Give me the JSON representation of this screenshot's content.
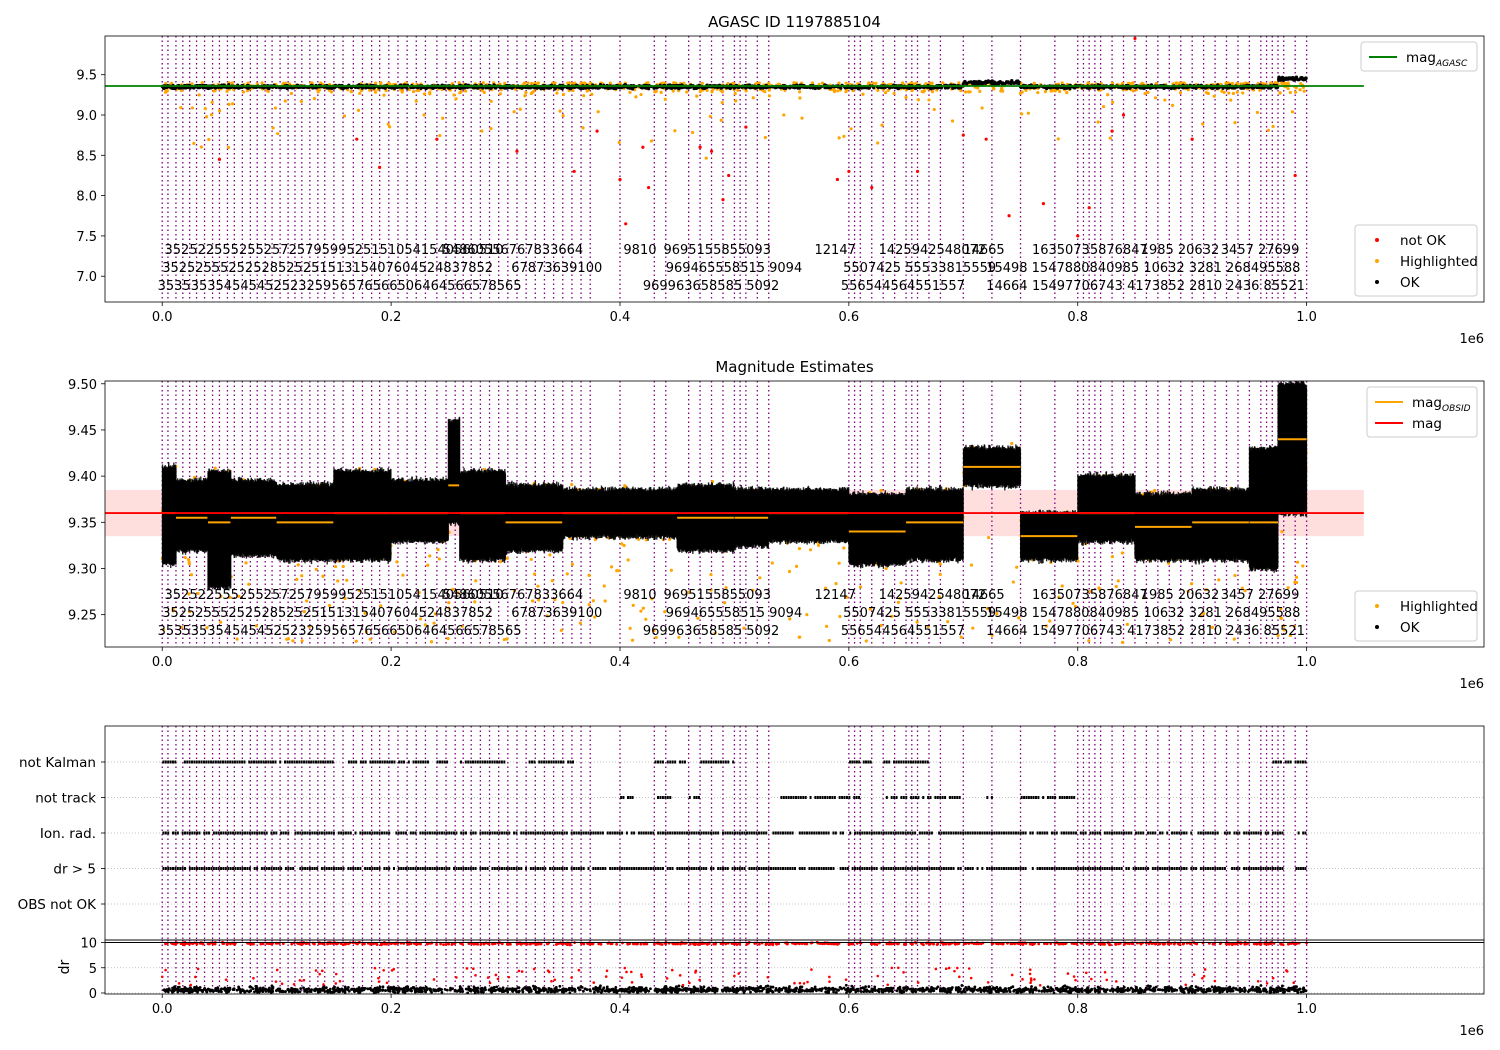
{
  "colors": {
    "ok": "#000000",
    "highlighted": "#ffa500",
    "not_ok": "#ff0000",
    "agasc_line": "#008000",
    "mag_line": "#ff0000",
    "obsid_line": "#ffa500",
    "obsid_vlines": "#800080",
    "band": "#ffc8c8"
  },
  "chart_data": [
    {
      "type": "scatter",
      "title": "AGASC ID 1197885104",
      "xlabel": "",
      "ylabel": "",
      "x_offset_label": "1e6",
      "xlim": [
        -0.05,
        1.155
      ],
      "ylim": [
        6.68,
        9.98
      ],
      "xticks": [
        0.0,
        0.2,
        0.4,
        0.6,
        0.8,
        1.0
      ],
      "xtick_labels": [
        "0.0",
        "0.2",
        "0.4",
        "0.6",
        "0.8",
        "1.0"
      ],
      "yticks": [
        7.0,
        7.5,
        8.0,
        8.5,
        9.0,
        9.5
      ],
      "ytick_labels": [
        "7.0",
        "7.5",
        "8.0",
        "8.5",
        "9.0",
        "9.5"
      ],
      "reference_lines": [
        {
          "name": "mag_AGASC",
          "y": 9.36,
          "x_range": [
            -0.05,
            1.05
          ]
        }
      ],
      "legend_top": {
        "position": "top-right",
        "entries": [
          {
            "label": "mag",
            "sub": "AGASC",
            "kind": "line",
            "color": "#008000"
          }
        ]
      },
      "legend_bottom": {
        "position": "bottom-right",
        "entries": [
          {
            "label": "not OK",
            "kind": "dot",
            "color": "#ff0000"
          },
          {
            "label": "Highlighted",
            "kind": "dot",
            "color": "#ffa500"
          },
          {
            "label": "OK",
            "kind": "dot",
            "color": "#000000"
          }
        ]
      },
      "series": [
        {
          "name": "OK",
          "color": "#000000",
          "level": 9.35,
          "spread": 0.03
        },
        {
          "name": "Highlighted",
          "color": "#ffa500",
          "level": 9.3,
          "spread": 0.12
        },
        {
          "name": "not OK",
          "color": "#ff0000",
          "points": [
            [
              0.05,
              8.45
            ],
            [
              0.17,
              8.7
            ],
            [
              0.19,
              8.35
            ],
            [
              0.24,
              8.7
            ],
            [
              0.31,
              8.55
            ],
            [
              0.36,
              8.3
            ],
            [
              0.38,
              8.8
            ],
            [
              0.4,
              8.2
            ],
            [
              0.405,
              7.65
            ],
            [
              0.42,
              8.6
            ],
            [
              0.425,
              8.1
            ],
            [
              0.47,
              8.6
            ],
            [
              0.48,
              8.55
            ],
            [
              0.49,
              7.95
            ],
            [
              0.495,
              8.25
            ],
            [
              0.51,
              8.85
            ],
            [
              0.59,
              8.2
            ],
            [
              0.6,
              8.3
            ],
            [
              0.62,
              8.1
            ],
            [
              0.66,
              8.3
            ],
            [
              0.7,
              8.75
            ],
            [
              0.72,
              8.7
            ],
            [
              0.74,
              7.75
            ],
            [
              0.77,
              7.9
            ],
            [
              0.8,
              7.5
            ],
            [
              0.81,
              7.85
            ],
            [
              0.83,
              8.8
            ],
            [
              0.84,
              9.0
            ],
            [
              0.85,
              9.95
            ],
            [
              0.9,
              8.7
            ],
            [
              0.99,
              8.25
            ]
          ]
        }
      ]
    },
    {
      "type": "scatter",
      "title": "Magnitude Estimates",
      "xlabel": "",
      "ylabel": "",
      "x_offset_label": "1e6",
      "xlim": [
        -0.05,
        1.155
      ],
      "ylim": [
        9.215,
        9.503
      ],
      "xticks": [
        0.0,
        0.2,
        0.4,
        0.6,
        0.8,
        1.0
      ],
      "xtick_labels": [
        "0.0",
        "0.2",
        "0.4",
        "0.6",
        "0.8",
        "1.0"
      ],
      "yticks": [
        9.25,
        9.3,
        9.35,
        9.4,
        9.45,
        9.5
      ],
      "ytick_labels": [
        "9.25",
        "9.30",
        "9.35",
        "9.40",
        "9.45",
        "9.50"
      ],
      "mag_line": {
        "y": 9.36,
        "band": [
          9.335,
          9.385
        ],
        "x_range": [
          -0.05,
          1.05
        ]
      },
      "legend_top": {
        "position": "top-right",
        "entries": [
          {
            "label": "mag",
            "sub": "OBSID",
            "kind": "line",
            "color": "#ffa500"
          },
          {
            "label": "mag",
            "sub": "",
            "kind": "line",
            "color": "#ff0000"
          }
        ]
      },
      "legend_bottom": {
        "position": "bottom-right",
        "entries": [
          {
            "label": "Highlighted",
            "kind": "dot",
            "color": "#ffa500"
          },
          {
            "label": "OK",
            "kind": "dot",
            "color": "#000000"
          }
        ]
      },
      "obsid_segments": [
        {
          "x": [
            0.0,
            0.012
          ],
          "mag": 9.36,
          "lo": 9.305,
          "hi": 9.41
        },
        {
          "x": [
            0.012,
            0.04
          ],
          "mag": 9.355,
          "lo": 9.32,
          "hi": 9.395
        },
        {
          "x": [
            0.04,
            0.06
          ],
          "mag": 9.35,
          "lo": 9.28,
          "hi": 9.405
        },
        {
          "x": [
            0.06,
            0.1
          ],
          "mag": 9.355,
          "lo": 9.315,
          "hi": 9.395
        },
        {
          "x": [
            0.1,
            0.15
          ],
          "mag": 9.35,
          "lo": 9.31,
          "hi": 9.39
        },
        {
          "x": [
            0.15,
            0.2
          ],
          "mag": 9.36,
          "lo": 9.31,
          "hi": 9.405
        },
        {
          "x": [
            0.2,
            0.25
          ],
          "mag": 9.36,
          "lo": 9.33,
          "hi": 9.395
        },
        {
          "x": [
            0.25,
            0.26
          ],
          "mag": 9.39,
          "lo": 9.35,
          "hi": 9.46
        },
        {
          "x": [
            0.26,
            0.3
          ],
          "mag": 9.36,
          "lo": 9.31,
          "hi": 9.405
        },
        {
          "x": [
            0.3,
            0.35
          ],
          "mag": 9.35,
          "lo": 9.32,
          "hi": 9.39
        },
        {
          "x": [
            0.35,
            0.4
          ],
          "mag": 9.36,
          "lo": 9.335,
          "hi": 9.385
        },
        {
          "x": [
            0.4,
            0.45
          ],
          "mag": 9.36,
          "lo": 9.335,
          "hi": 9.385
        },
        {
          "x": [
            0.45,
            0.5
          ],
          "mag": 9.355,
          "lo": 9.32,
          "hi": 9.39
        },
        {
          "x": [
            0.5,
            0.53
          ],
          "mag": 9.355,
          "lo": 9.325,
          "hi": 9.385
        },
        {
          "x": [
            0.53,
            0.6
          ],
          "mag": 9.36,
          "lo": 9.33,
          "hi": 9.385
        },
        {
          "x": [
            0.6,
            0.65
          ],
          "mag": 9.34,
          "lo": 9.305,
          "hi": 9.38
        },
        {
          "x": [
            0.65,
            0.7
          ],
          "mag": 9.35,
          "lo": 9.31,
          "hi": 9.385
        },
        {
          "x": [
            0.7,
            0.75
          ],
          "mag": 9.41,
          "lo": 9.39,
          "hi": 9.43
        },
        {
          "x": [
            0.75,
            0.8
          ],
          "mag": 9.335,
          "lo": 9.31,
          "hi": 9.36
        },
        {
          "x": [
            0.8,
            0.85
          ],
          "mag": 9.36,
          "lo": 9.33,
          "hi": 9.4
        },
        {
          "x": [
            0.85,
            0.9
          ],
          "mag": 9.345,
          "lo": 9.31,
          "hi": 9.38
        },
        {
          "x": [
            0.9,
            0.95
          ],
          "mag": 9.35,
          "lo": 9.31,
          "hi": 9.385
        },
        {
          "x": [
            0.95,
            0.975
          ],
          "mag": 9.35,
          "lo": 9.3,
          "hi": 9.43
        },
        {
          "x": [
            0.975,
            1.0
          ],
          "mag": 9.44,
          "lo": 9.36,
          "hi": 9.5
        }
      ]
    },
    {
      "type": "scatter",
      "title": "",
      "xlabel": "",
      "ylabel": "",
      "x_offset_label": "1e6",
      "xlim": [
        -0.05,
        1.155
      ],
      "xticks": [
        0.0,
        0.2,
        0.4,
        0.6,
        0.8,
        1.0
      ],
      "xtick_labels": [
        "0.0",
        "0.2",
        "0.4",
        "0.6",
        "0.8",
        "1.0"
      ],
      "categories": [
        "OBS not OK",
        "dr > 5",
        "Ion. rad.",
        "not track",
        "not Kalman"
      ],
      "flag_rows": [
        {
          "category": "not Kalman",
          "intervals": [
            [
              0.0,
              0.15
            ],
            [
              0.16,
              0.25
            ],
            [
              0.26,
              0.3
            ],
            [
              0.32,
              0.36
            ],
            [
              0.43,
              0.46
            ],
            [
              0.47,
              0.5
            ],
            [
              0.6,
              0.62
            ],
            [
              0.63,
              0.67
            ],
            [
              0.97,
              1.0
            ]
          ]
        },
        {
          "category": "not track",
          "intervals": [
            [
              0.4,
              0.412
            ],
            [
              0.43,
              0.445
            ],
            [
              0.46,
              0.47
            ],
            [
              0.54,
              0.61
            ],
            [
              0.63,
              0.7
            ],
            [
              0.72,
              0.73
            ],
            [
              0.75,
              0.8
            ]
          ]
        },
        {
          "category": "Ion. rad.",
          "intervals": [
            [
              0.0,
              0.98
            ],
            [
              0.99,
              1.0
            ]
          ]
        },
        {
          "category": "dr > 5",
          "intervals": [
            [
              0.0,
              0.98
            ],
            [
              0.99,
              1.0
            ]
          ]
        },
        {
          "category": "OBS not OK",
          "intervals": []
        }
      ]
    },
    {
      "type": "scatter",
      "title": "",
      "xlabel": "",
      "ylabel": "dr",
      "xlim": [
        -0.05,
        1.155
      ],
      "ylim": [
        -0.2,
        10.5
      ],
      "yticks": [
        0,
        5,
        10
      ],
      "ytick_labels": [
        "0",
        "5",
        "10"
      ],
      "threshold_line": {
        "y": 10
      },
      "series": [
        {
          "name": "OK",
          "color": "#000000",
          "level": 0.7,
          "spread": 1.0
        },
        {
          "name": "not OK",
          "color": "#ff0000",
          "level": 9.8,
          "spread": 0.3
        }
      ]
    }
  ],
  "obsid_lines": [
    0.0,
    0.005,
    0.012,
    0.018,
    0.024,
    0.03,
    0.037,
    0.044,
    0.05,
    0.057,
    0.063,
    0.07,
    0.077,
    0.083,
    0.09,
    0.096,
    0.103,
    0.11,
    0.116,
    0.122,
    0.129,
    0.136,
    0.142,
    0.15,
    0.158,
    0.167,
    0.175,
    0.183,
    0.19,
    0.198,
    0.206,
    0.214,
    0.222,
    0.23,
    0.24,
    0.248,
    0.256,
    0.263,
    0.27,
    0.278,
    0.286,
    0.294,
    0.302,
    0.31,
    0.318,
    0.326,
    0.334,
    0.342,
    0.35,
    0.358,
    0.366,
    0.374,
    0.4,
    0.43,
    0.44,
    0.46,
    0.47,
    0.48,
    0.49,
    0.5,
    0.505,
    0.51,
    0.52,
    0.53,
    0.6,
    0.605,
    0.61,
    0.62,
    0.63,
    0.64,
    0.65,
    0.655,
    0.66,
    0.67,
    0.68,
    0.7,
    0.725,
    0.75,
    0.78,
    0.8,
    0.805,
    0.81,
    0.815,
    0.82,
    0.83,
    0.84,
    0.85,
    0.86,
    0.87,
    0.88,
    0.89,
    0.9,
    0.91,
    0.92,
    0.93,
    0.94,
    0.95,
    0.96,
    0.965,
    0.97,
    0.975,
    0.98,
    0.99,
    1.0
  ],
  "obsid_labels": {
    "row1": [
      {
        "x": 0.002,
        "text": "35252255525525725795995251510541540560510"
      },
      {
        "x": 0.245,
        "text": "54860556767833664"
      },
      {
        "x": 0.403,
        "text": "9810"
      },
      {
        "x": 0.438,
        "text": "9695155855093"
      },
      {
        "x": 0.57,
        "text": "12147"
      },
      {
        "x": 0.626,
        "text": "1425942548072"
      },
      {
        "x": 0.7,
        "text": "14665"
      },
      {
        "x": 0.76,
        "text": "16350735876847"
      },
      {
        "x": 0.855,
        "text": "1985 20632"
      },
      {
        "x": 0.925,
        "text": "3457 27699"
      }
    ],
    "row2": [
      {
        "x": 0.0,
        "text": "3525255525252852525151315407604524837852"
      },
      {
        "x": 0.305,
        "text": "67873639100"
      },
      {
        "x": 0.44,
        "text": "969465558515 9094"
      },
      {
        "x": 0.595,
        "text": "5507425 55533815559"
      },
      {
        "x": 0.72,
        "text": "15498 1547880840985 10632 3281 268495588"
      }
    ],
    "row3": [
      {
        "x": -0.004,
        "text": "35353535454545252325956576566506464566578565"
      },
      {
        "x": 0.42,
        "text": "969963658585 5092"
      },
      {
        "x": 0.593,
        "text": "556544564551557"
      },
      {
        "x": 0.72,
        "text": "14664"
      },
      {
        "x": 0.76,
        "text": "15497706743 4173852 2810 2436 85521"
      }
    ]
  }
}
